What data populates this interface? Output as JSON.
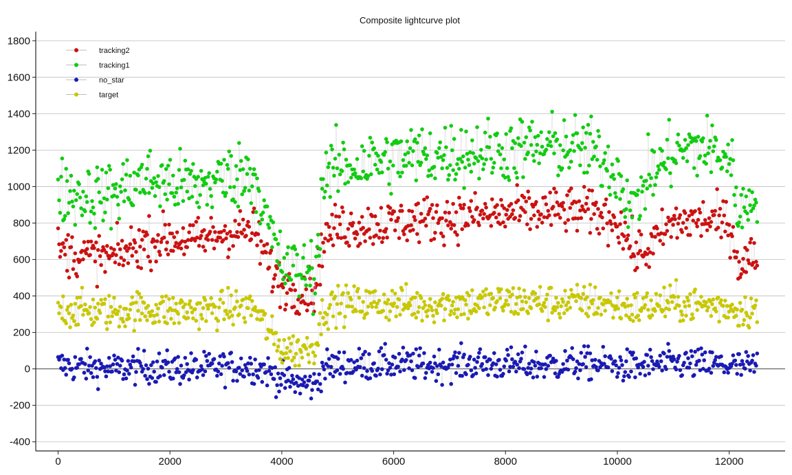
{
  "chart_data": {
    "type": "scatter",
    "title": "Composite lightcurve plot",
    "xlabel": "",
    "ylabel": "",
    "xlim": [
      -400,
      13000
    ],
    "ylim": [
      -450,
      1850
    ],
    "x_ticks": [
      0,
      2000,
      4000,
      6000,
      8000,
      10000,
      12000
    ],
    "x_tick_labels": [
      "0",
      "2000",
      "4000",
      "6000",
      "8000",
      "10000",
      "12000"
    ],
    "y_ticks": [
      -400,
      -200,
      0,
      200,
      400,
      600,
      800,
      1000,
      1200,
      1400,
      1600,
      1800
    ],
    "y_tick_labels": [
      "-400",
      "-200",
      "0",
      "200",
      "400",
      "600",
      "800",
      "1000",
      "1200",
      "1400",
      "1600",
      "1800"
    ],
    "grid": true,
    "legend_position": "top-left",
    "connector_color": "#c8c8c8",
    "series": [
      {
        "name": "tracking2",
        "color": "#cc1111",
        "x": [
          0,
          500,
          1000,
          1500,
          2000,
          2500,
          3000,
          3500,
          3800,
          4000,
          4300,
          4600,
          4750,
          5000,
          5500,
          6000,
          6500,
          7000,
          7500,
          8000,
          8500,
          9000,
          9500,
          10000,
          10300,
          10500,
          11000,
          11500,
          12000,
          12200,
          12500
        ],
        "values": [
          650,
          620,
          610,
          690,
          720,
          700,
          750,
          760,
          550,
          460,
          430,
          440,
          720,
          780,
          790,
          800,
          820,
          830,
          840,
          850,
          860,
          870,
          860,
          820,
          640,
          640,
          800,
          820,
          800,
          560,
          640
        ]
      },
      {
        "name": "tracking1",
        "color": "#11cc11",
        "x": [
          0,
          500,
          1000,
          1500,
          2000,
          2500,
          3000,
          3500,
          3800,
          4000,
          4300,
          4600,
          4750,
          5000,
          5500,
          6000,
          6500,
          7000,
          7500,
          8000,
          8500,
          9000,
          9500,
          10000,
          10300,
          10500,
          11000,
          11500,
          12000,
          12200,
          12500
        ],
        "values": [
          980,
          950,
          960,
          1040,
          1020,
          1000,
          1050,
          1080,
          740,
          560,
          540,
          520,
          1070,
          1100,
          1130,
          1150,
          1170,
          1180,
          1190,
          1200,
          1210,
          1220,
          1200,
          1080,
          860,
          1040,
          1180,
          1220,
          1160,
          840,
          1000
        ]
      },
      {
        "name": "no_star",
        "color": "#1a1ab4",
        "x": [
          0,
          500,
          1000,
          1500,
          2000,
          2500,
          3000,
          3500,
          3800,
          4000,
          4300,
          4600,
          4750,
          5000,
          5500,
          6000,
          6500,
          7000,
          7500,
          8000,
          8500,
          9000,
          9500,
          10000,
          10300,
          10500,
          11000,
          11500,
          12000,
          12200,
          12500
        ],
        "values": [
          20,
          10,
          0,
          10,
          5,
          0,
          10,
          15,
          -20,
          -60,
          -80,
          -90,
          10,
          20,
          25,
          30,
          20,
          25,
          30,
          25,
          20,
          25,
          30,
          20,
          10,
          20,
          30,
          25,
          20,
          10,
          15
        ]
      },
      {
        "name": "target",
        "color": "#c8c800",
        "x": [
          0,
          500,
          1000,
          1500,
          2000,
          2500,
          3000,
          3500,
          3800,
          4000,
          4300,
          4600,
          4750,
          5000,
          5500,
          6000,
          6500,
          7000,
          7500,
          8000,
          8500,
          9000,
          9500,
          10000,
          10300,
          10500,
          11000,
          11500,
          12000,
          12200,
          12500
        ],
        "values": [
          330,
          320,
          310,
          330,
          320,
          320,
          330,
          340,
          190,
          110,
          100,
          130,
          330,
          350,
          360,
          360,
          350,
          360,
          360,
          370,
          370,
          360,
          370,
          350,
          330,
          340,
          360,
          350,
          340,
          320,
          330
        ]
      }
    ]
  }
}
